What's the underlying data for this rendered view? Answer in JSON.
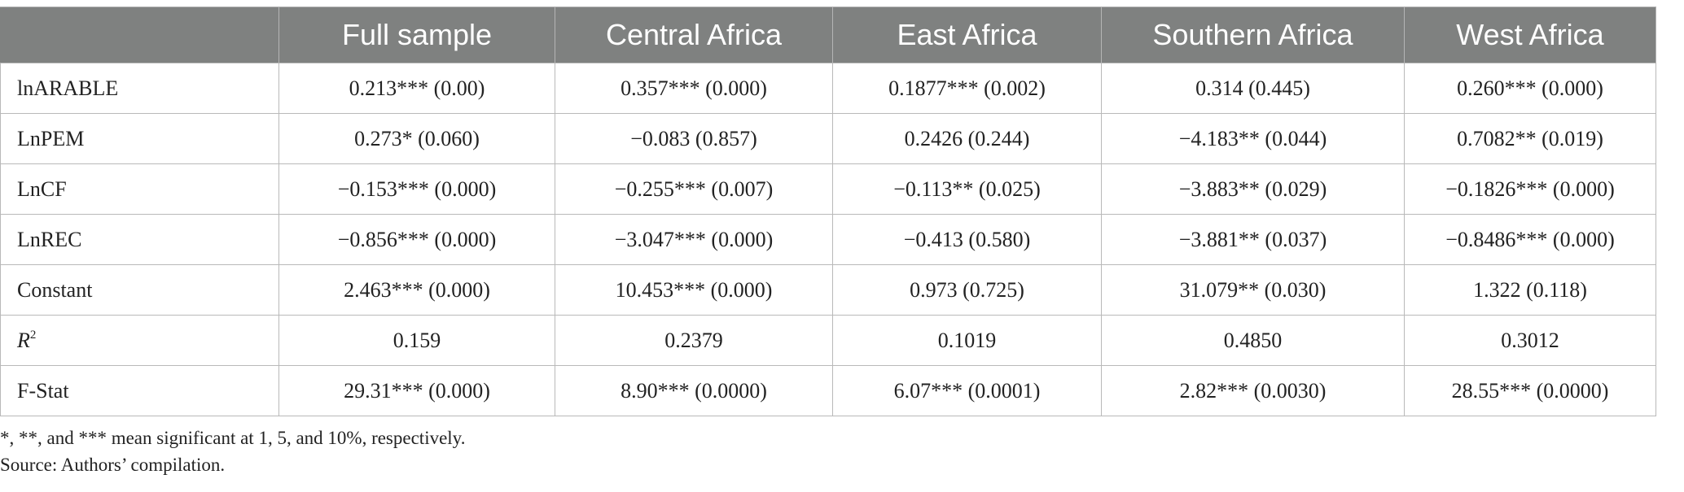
{
  "table": {
    "columns": [
      "",
      "Full sample",
      "Central Africa",
      "East Africa",
      "Southern Africa",
      "West Africa"
    ],
    "header_background": "#7f8180",
    "header_text_color": "#ffffff",
    "rows": [
      {
        "label": "lnARABLE",
        "cells": [
          "0.213*** (0.00)",
          "0.357*** (0.000)",
          "0.1877*** (0.002)",
          "0.314 (0.445)",
          "0.260*** (0.000)"
        ]
      },
      {
        "label": "LnPEM",
        "cells": [
          "0.273* (0.060)",
          "−0.083 (0.857)",
          "0.2426 (0.244)",
          "−4.183** (0.044)",
          "0.7082** (0.019)"
        ]
      },
      {
        "label": "LnCF",
        "cells": [
          "−0.153*** (0.000)",
          "−0.255*** (0.007)",
          "−0.113** (0.025)",
          "−3.883** (0.029)",
          "−0.1826*** (0.000)"
        ]
      },
      {
        "label": "LnREC",
        "cells": [
          "−0.856*** (0.000)",
          "−3.047*** (0.000)",
          "−0.413 (0.580)",
          "−3.881** (0.037)",
          "−0.8486*** (0.000)"
        ]
      },
      {
        "label": "Constant",
        "cells": [
          "2.463*** (0.000)",
          "10.453*** (0.000)",
          "0.973 (0.725)",
          "31.079** (0.030)",
          "1.322 (0.118)"
        ]
      },
      {
        "label_main": "R",
        "label_sup": "2",
        "cells": [
          "0.159",
          "0.2379",
          "0.1019",
          "0.4850",
          "0.3012"
        ]
      },
      {
        "label": "F-Stat",
        "cells": [
          "29.31*** (0.000)",
          "8.90*** (0.0000)",
          "6.07*** (0.0001)",
          "2.82*** (0.0030)",
          "28.55*** (0.0000)"
        ]
      }
    ]
  },
  "notes": {
    "significance": "*, **, and *** mean significant at 1, 5, and 10%, respectively.",
    "source": "Source: Authors’ compilation."
  }
}
